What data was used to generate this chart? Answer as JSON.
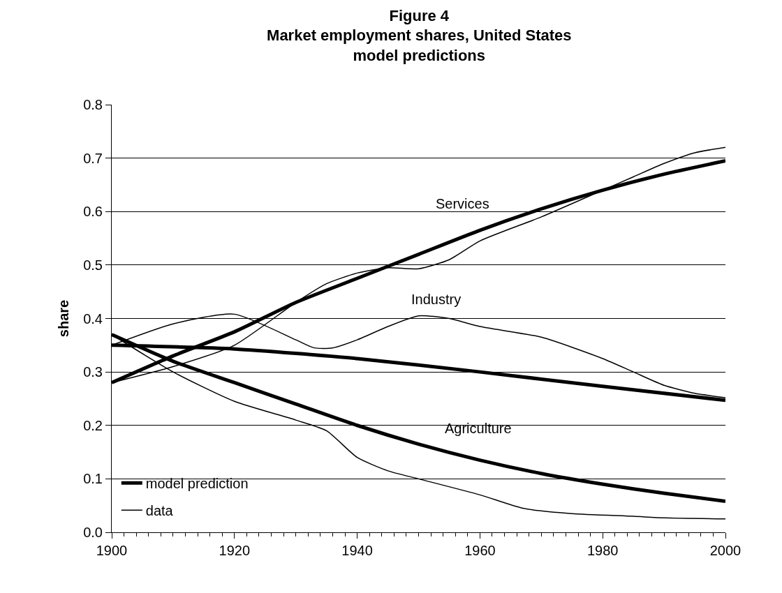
{
  "chart_data": {
    "type": "line",
    "title": "Figure 4\nMarket employment shares, United States\nmodel predictions",
    "ylabel": "share",
    "xlim": [
      1900,
      2000
    ],
    "xticks": [
      1900,
      1920,
      1940,
      1960,
      1980,
      2000
    ],
    "ylim": [
      0,
      0.8
    ],
    "yticks": [
      {
        "value": 0,
        "label": "0.0"
      },
      0.1,
      0.2,
      0.3,
      0.4,
      0.5,
      0.6,
      0.7,
      0.8
    ],
    "grid": "y",
    "legend": "bottom left",
    "marker": "none",
    "line_style": "solid",
    "annotations": [
      "Services",
      "Industry",
      "Agriculture"
    ],
    "series": [
      {
        "name": "model prediction",
        "color": "#000000",
        "x": [
          1900,
          1910,
          1920,
          1930,
          1940,
          1950,
          1960,
          1970,
          1980,
          1990,
          2000
        ],
        "values": [
          0.28,
          0.33,
          0.375,
          0.43,
          0.475,
          0.52,
          0.565,
          0.605,
          0.64,
          0.67,
          0.695
        ]
      },
      {
        "name": "data",
        "color": "#000000",
        "x": [
          1900,
          1910,
          1920,
          1930,
          1935,
          1940,
          1945,
          1950,
          1955,
          1960,
          1970,
          1980,
          1985,
          1990,
          1995,
          2000
        ],
        "values": [
          0.28,
          0.31,
          0.35,
          0.43,
          0.465,
          0.485,
          0.495,
          0.493,
          0.51,
          0.545,
          0.59,
          0.64,
          0.665,
          0.69,
          0.71,
          0.72
        ]
      },
      {
        "color": "#000000",
        "x": [
          1900,
          1920,
          1940,
          1960,
          1980,
          2000
        ],
        "values": [
          0.35,
          0.343,
          0.325,
          0.3,
          0.273,
          0.247
        ]
      },
      {
        "color": "#000000",
        "x": [
          1900,
          1910,
          1920,
          1930,
          1933,
          1936,
          1940,
          1945,
          1950,
          1955,
          1960,
          1970,
          1980,
          1985,
          1990,
          1995,
          2000
        ],
        "values": [
          0.35,
          0.39,
          0.408,
          0.36,
          0.345,
          0.345,
          0.36,
          0.385,
          0.405,
          0.4,
          0.385,
          0.365,
          0.325,
          0.3,
          0.275,
          0.26,
          0.252
        ]
      },
      {
        "color": "#000000",
        "x": [
          1900,
          1910,
          1920,
          1930,
          1940,
          1950,
          1960,
          1970,
          1980,
          1990,
          2000
        ],
        "values": [
          0.37,
          0.32,
          0.28,
          0.24,
          0.2,
          0.165,
          0.135,
          0.11,
          0.09,
          0.073,
          0.058
        ]
      },
      {
        "color": "#000000",
        "x": [
          1900,
          1910,
          1920,
          1930,
          1935,
          1940,
          1945,
          1950,
          1960,
          1967,
          1975,
          1985,
          1990,
          2000
        ],
        "values": [
          0.37,
          0.3,
          0.245,
          0.21,
          0.19,
          0.14,
          0.115,
          0.1,
          0.07,
          0.045,
          0.035,
          0.03,
          0.027,
          0.025
        ]
      }
    ]
  }
}
